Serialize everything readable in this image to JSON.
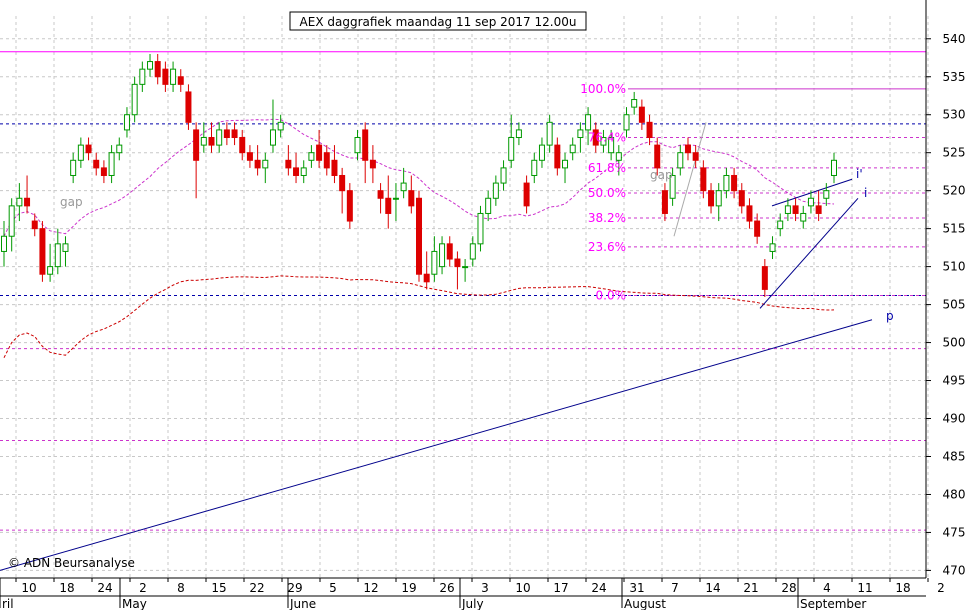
{
  "chart_data": {
    "type": "candlestick",
    "title": "AEX daggrafiek maandag 11 sep 2017 12.00u",
    "copyright": "© ADN Beursanalyse",
    "y_axis": {
      "min": 469,
      "max": 543,
      "ticks": [
        470,
        475,
        480,
        485,
        490,
        495,
        500,
        505,
        510,
        515,
        520,
        525,
        530,
        535,
        540
      ]
    },
    "x_ticks": [
      "10",
      "18",
      "24",
      "2",
      "8",
      "15",
      "22",
      "29",
      "5",
      "12",
      "19",
      "26",
      "3",
      "10",
      "17",
      "24",
      "31",
      "7",
      "14",
      "21",
      "28",
      "4",
      "11",
      "18",
      "2"
    ],
    "months": [
      "ril",
      "May",
      "June",
      "July",
      "August",
      "September"
    ],
    "fib_levels": [
      {
        "label": "100.0%",
        "value": 533.4
      },
      {
        "label": "76.4%",
        "value": 527.0
      },
      {
        "label": "61.8%",
        "value": 523.0
      },
      {
        "label": "50.0%",
        "value": 519.7
      },
      {
        "label": "38.2%",
        "value": 516.4
      },
      {
        "label": "23.6%",
        "value": 512.6
      },
      {
        "label": "0.0%",
        "value": 506.2
      }
    ],
    "annotations": [
      "gap",
      "gap",
      "i'",
      "i",
      "p"
    ],
    "resistance_lines": [
      538.3,
      528.8,
      506.2,
      499.2,
      487.1,
      475.3
    ],
    "candles": [
      {
        "o": 512,
        "h": 516,
        "l": 510,
        "c": 514
      },
      {
        "o": 514,
        "h": 519,
        "l": 512,
        "c": 518
      },
      {
        "o": 518,
        "h": 521,
        "l": 516,
        "c": 519
      },
      {
        "o": 519,
        "h": 522,
        "l": 517,
        "c": 518
      },
      {
        "o": 516,
        "h": 517,
        "l": 514,
        "c": 515
      },
      {
        "o": 515,
        "h": 516,
        "l": 508,
        "c": 509
      },
      {
        "o": 509,
        "h": 513,
        "l": 508,
        "c": 510
      },
      {
        "o": 510,
        "h": 515,
        "l": 509,
        "c": 513
      },
      {
        "o": 512,
        "h": 514,
        "l": 510,
        "c": 513
      },
      {
        "o": 522,
        "h": 525,
        "l": 521,
        "c": 524
      },
      {
        "o": 524,
        "h": 527,
        "l": 523,
        "c": 526
      },
      {
        "o": 526,
        "h": 527,
        "l": 524,
        "c": 525
      },
      {
        "o": 524,
        "h": 525,
        "l": 522,
        "c": 523
      },
      {
        "o": 523,
        "h": 524,
        "l": 521,
        "c": 522
      },
      {
        "o": 522,
        "h": 526,
        "l": 521,
        "c": 525
      },
      {
        "o": 525,
        "h": 527,
        "l": 524,
        "c": 526
      },
      {
        "o": 528,
        "h": 531,
        "l": 527,
        "c": 530
      },
      {
        "o": 530,
        "h": 535,
        "l": 529,
        "c": 534
      },
      {
        "o": 534,
        "h": 537,
        "l": 533,
        "c": 536
      },
      {
        "o": 536,
        "h": 538,
        "l": 535,
        "c": 537
      },
      {
        "o": 537,
        "h": 538,
        "l": 534,
        "c": 535
      },
      {
        "o": 536,
        "h": 537,
        "l": 533,
        "c": 534
      },
      {
        "o": 534,
        "h": 537,
        "l": 533,
        "c": 536
      },
      {
        "o": 535,
        "h": 536,
        "l": 533,
        "c": 534
      },
      {
        "o": 533,
        "h": 534,
        "l": 528,
        "c": 529
      },
      {
        "o": 528,
        "h": 529,
        "l": 519,
        "c": 524
      },
      {
        "o": 526,
        "h": 529,
        "l": 525,
        "c": 527
      },
      {
        "o": 527,
        "h": 529,
        "l": 525,
        "c": 526
      },
      {
        "o": 526,
        "h": 529,
        "l": 525,
        "c": 528
      },
      {
        "o": 528,
        "h": 529,
        "l": 526,
        "c": 527
      },
      {
        "o": 528,
        "h": 529,
        "l": 526,
        "c": 527
      },
      {
        "o": 527,
        "h": 528,
        "l": 524,
        "c": 525
      },
      {
        "o": 525,
        "h": 526,
        "l": 523,
        "c": 524
      },
      {
        "o": 524,
        "h": 526,
        "l": 522,
        "c": 523
      },
      {
        "o": 523,
        "h": 525,
        "l": 521,
        "c": 524
      },
      {
        "o": 526,
        "h": 532,
        "l": 525,
        "c": 528
      },
      {
        "o": 528,
        "h": 530,
        "l": 527,
        "c": 529
      },
      {
        "o": 524,
        "h": 526,
        "l": 522,
        "c": 523
      },
      {
        "o": 523,
        "h": 525,
        "l": 521,
        "c": 522
      },
      {
        "o": 522,
        "h": 524,
        "l": 521,
        "c": 523
      },
      {
        "o": 524,
        "h": 526,
        "l": 523,
        "c": 525
      },
      {
        "o": 526,
        "h": 528,
        "l": 523,
        "c": 524
      },
      {
        "o": 525,
        "h": 526,
        "l": 522,
        "c": 523
      },
      {
        "o": 524,
        "h": 526,
        "l": 521,
        "c": 522
      },
      {
        "o": 522,
        "h": 523,
        "l": 517,
        "c": 520
      },
      {
        "o": 520,
        "h": 521,
        "l": 515,
        "c": 516
      },
      {
        "o": 525,
        "h": 528,
        "l": 524,
        "c": 527
      },
      {
        "o": 528,
        "h": 529,
        "l": 521,
        "c": 524
      },
      {
        "o": 524,
        "h": 526,
        "l": 521,
        "c": 523
      },
      {
        "o": 520,
        "h": 521,
        "l": 517,
        "c": 519
      },
      {
        "o": 519,
        "h": 522,
        "l": 515,
        "c": 517
      },
      {
        "o": 519,
        "h": 521,
        "l": 516,
        "c": 519
      },
      {
        "o": 520,
        "h": 523,
        "l": 519,
        "c": 521
      },
      {
        "o": 520,
        "h": 522,
        "l": 517,
        "c": 518
      },
      {
        "o": 519,
        "h": 520,
        "l": 508,
        "c": 509
      },
      {
        "o": 509,
        "h": 512,
        "l": 507,
        "c": 508
      },
      {
        "o": 509,
        "h": 514,
        "l": 508,
        "c": 512
      },
      {
        "o": 510,
        "h": 514,
        "l": 509,
        "c": 513
      },
      {
        "o": 513,
        "h": 514,
        "l": 510,
        "c": 511
      },
      {
        "o": 511,
        "h": 512,
        "l": 507,
        "c": 510
      },
      {
        "o": 510,
        "h": 511,
        "l": 508,
        "c": 510
      },
      {
        "o": 511,
        "h": 514,
        "l": 510,
        "c": 513
      },
      {
        "o": 513,
        "h": 518,
        "l": 512,
        "c": 517
      },
      {
        "o": 517,
        "h": 520,
        "l": 516,
        "c": 519
      },
      {
        "o": 519,
        "h": 522,
        "l": 518,
        "c": 521
      },
      {
        "o": 521,
        "h": 524,
        "l": 520,
        "c": 523
      },
      {
        "o": 524,
        "h": 530,
        "l": 523,
        "c": 527
      },
      {
        "o": 527,
        "h": 529,
        "l": 526,
        "c": 528
      },
      {
        "o": 521,
        "h": 522,
        "l": 517,
        "c": 518
      },
      {
        "o": 522,
        "h": 525,
        "l": 521,
        "c": 524
      },
      {
        "o": 524,
        "h": 527,
        "l": 523,
        "c": 526
      },
      {
        "o": 526,
        "h": 530,
        "l": 525,
        "c": 529
      },
      {
        "o": 526,
        "h": 527,
        "l": 522,
        "c": 523
      },
      {
        "o": 523,
        "h": 525,
        "l": 521,
        "c": 524
      },
      {
        "o": 525,
        "h": 527,
        "l": 524,
        "c": 526
      },
      {
        "o": 527,
        "h": 529,
        "l": 525,
        "c": 528
      },
      {
        "o": 528,
        "h": 531,
        "l": 526,
        "c": 530
      },
      {
        "o": 528,
        "h": 529,
        "l": 525,
        "c": 526
      },
      {
        "o": 526,
        "h": 528,
        "l": 525,
        "c": 527
      },
      {
        "o": 525,
        "h": 528,
        "l": 524,
        "c": 527
      },
      {
        "o": 524,
        "h": 526,
        "l": 522,
        "c": 525
      },
      {
        "o": 528,
        "h": 531,
        "l": 527,
        "c": 530
      },
      {
        "o": 531,
        "h": 533,
        "l": 530,
        "c": 532
      },
      {
        "o": 531,
        "h": 532,
        "l": 528,
        "c": 529
      },
      {
        "o": 529,
        "h": 530,
        "l": 526,
        "c": 527
      },
      {
        "o": 526,
        "h": 527,
        "l": 522,
        "c": 523
      },
      {
        "o": 520,
        "h": 521,
        "l": 516,
        "c": 517
      },
      {
        "o": 519,
        "h": 523,
        "l": 518,
        "c": 522
      },
      {
        "o": 523,
        "h": 526,
        "l": 522,
        "c": 525
      },
      {
        "o": 526,
        "h": 527,
        "l": 524,
        "c": 525
      },
      {
        "o": 525,
        "h": 526,
        "l": 523,
        "c": 524
      },
      {
        "o": 523,
        "h": 524,
        "l": 519,
        "c": 520
      },
      {
        "o": 520,
        "h": 521,
        "l": 517,
        "c": 518
      },
      {
        "o": 518,
        "h": 521,
        "l": 516,
        "c": 520
      },
      {
        "o": 520,
        "h": 523,
        "l": 519,
        "c": 522
      },
      {
        "o": 522,
        "h": 523,
        "l": 519,
        "c": 520
      },
      {
        "o": 520,
        "h": 521,
        "l": 517,
        "c": 518
      },
      {
        "o": 518,
        "h": 519,
        "l": 515,
        "c": 516
      },
      {
        "o": 516,
        "h": 517,
        "l": 513,
        "c": 514
      },
      {
        "o": 510,
        "h": 511,
        "l": 506,
        "c": 507
      },
      {
        "o": 512,
        "h": 514,
        "l": 511,
        "c": 513
      },
      {
        "o": 515,
        "h": 517,
        "l": 514,
        "c": 516
      },
      {
        "o": 517,
        "h": 519,
        "l": 516,
        "c": 518
      },
      {
        "o": 518,
        "h": 519,
        "l": 516,
        "c": 517
      },
      {
        "o": 516,
        "h": 518,
        "l": 515,
        "c": 517
      },
      {
        "o": 518,
        "h": 520,
        "l": 517,
        "c": 519
      },
      {
        "o": 518,
        "h": 520,
        "l": 516,
        "c": 517
      },
      {
        "o": 519,
        "h": 521,
        "l": 518,
        "c": 520
      },
      {
        "o": 522,
        "h": 525,
        "l": 521,
        "c": 524
      }
    ]
  }
}
